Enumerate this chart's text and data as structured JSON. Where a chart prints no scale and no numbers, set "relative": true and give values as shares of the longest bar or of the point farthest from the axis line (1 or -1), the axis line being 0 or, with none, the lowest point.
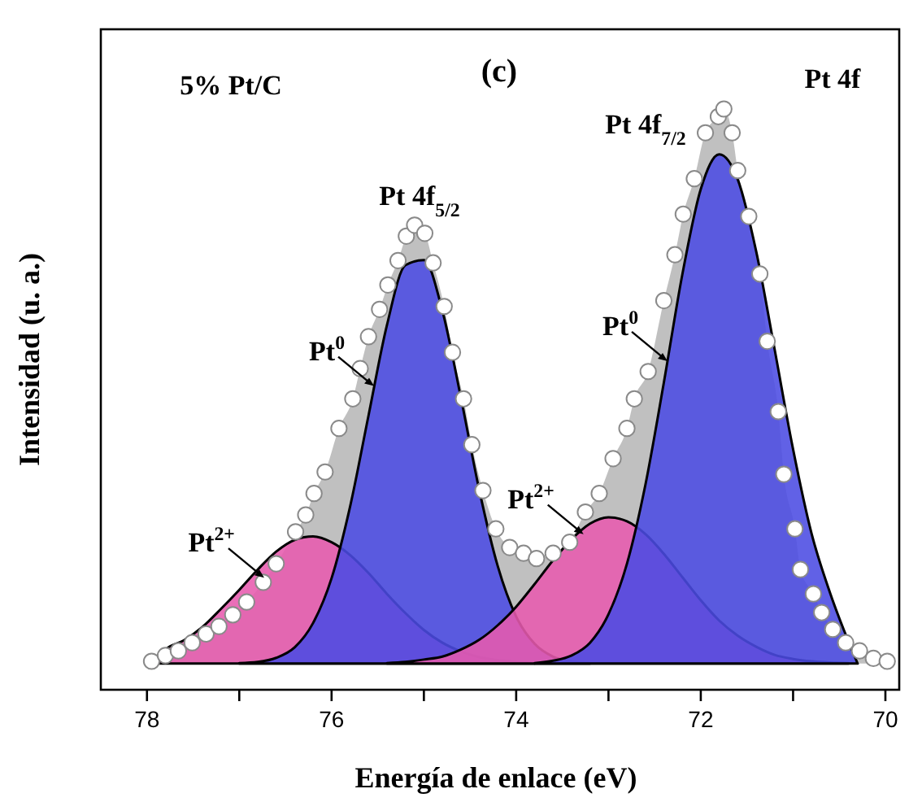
{
  "chart_data": {
    "type": "area",
    "title": "(c)",
    "xlabel": "Energía de enlace (eV)",
    "ylabel": "Intensidad (u. a.)",
    "relative": true,
    "xlim": [
      78.5,
      69.85
    ],
    "xticks": [
      78,
      {
        "value": 77,
        "label": null
      },
      76,
      {
        "value": 75,
        "label": null
      },
      74,
      {
        "value": 73,
        "label": null
      },
      72,
      {
        "value": 71,
        "label": null
      },
      70
    ],
    "grid": false,
    "annotations": [
      "5% Pt/C",
      "Pt 4f",
      "Pt 4f$_{7/2}$",
      "Pt 4f$_{5/2}$",
      {
        "text": "Pt$^{0}$",
        "x": 75.54,
        "y": 0.523
      },
      {
        "text": "Pt$^{0}$",
        "x": 72.36,
        "y": 0.566
      },
      {
        "text": "Pt$^{2+}$",
        "x": 76.73,
        "y": 0.193
      },
      {
        "text": "Pt$^{2+}$",
        "x": 73.27,
        "y": 0.268
      }
    ],
    "series": [
      {
        "color": "#c0c0c0",
        "x": [
          77.95,
          77.8,
          77.66,
          77.51,
          77.36,
          77.22,
          77.07,
          76.92,
          76.74,
          76.6,
          76.39,
          76.28,
          76.19,
          76.07,
          75.92,
          75.77,
          75.69,
          75.6,
          75.48,
          75.39,
          75.28,
          75.19,
          75.1,
          74.99,
          74.9,
          74.78,
          74.69,
          74.57,
          74.48,
          74.36,
          74.22,
          74.07,
          73.92,
          73.78,
          73.6,
          73.42,
          73.25,
          73.1,
          72.95,
          72.8,
          72.72,
          72.57,
          72.4,
          72.28,
          72.19,
          72.07,
          71.95,
          71.81,
          71.75,
          71.66,
          71.6,
          71.48,
          71.36,
          71.28,
          71.16,
          71.1,
          70.98,
          70.92,
          70.78,
          70.69,
          70.57,
          70.43,
          70.28,
          70.13,
          69.98
        ],
        "values": [
          0.049,
          0.059,
          0.067,
          0.081,
          0.096,
          0.109,
          0.129,
          0.151,
          0.185,
          0.217,
          0.272,
          0.301,
          0.338,
          0.375,
          0.45,
          0.501,
          0.553,
          0.608,
          0.655,
          0.697,
          0.739,
          0.781,
          0.8,
          0.786,
          0.735,
          0.66,
          0.581,
          0.501,
          0.422,
          0.343,
          0.277,
          0.245,
          0.235,
          0.226,
          0.235,
          0.254,
          0.306,
          0.338,
          0.398,
          0.45,
          0.501,
          0.548,
          0.67,
          0.749,
          0.819,
          0.88,
          0.959,
          0.987,
          1,
          0.959,
          0.894,
          0.815,
          0.716,
          0.6,
          0.479,
          0.371,
          0.277,
          0.207,
          0.165,
          0.133,
          0.104,
          0.081,
          0.067,
          0.054,
          0.049
        ]
      },
      {
        "color": "#e75aae",
        "line_style": "solid",
        "x": [
          77.9,
          77.8,
          77.6,
          77.4,
          77.2,
          77.0,
          76.8,
          76.6,
          76.4,
          76.2,
          76.0,
          75.8,
          75.6,
          75.4,
          75.2,
          75.0,
          74.8,
          74.6,
          74.4,
          74.2,
          74.0,
          73.8
        ],
        "values": [
          0.046,
          0.069,
          0.085,
          0.108,
          0.139,
          0.172,
          0.207,
          0.238,
          0.258,
          0.264,
          0.254,
          0.232,
          0.201,
          0.165,
          0.132,
          0.103,
          0.081,
          0.066,
          0.056,
          0.051,
          0.048,
          0.046
        ]
      },
      {
        "color": "#4b4be3",
        "line_style": "solid",
        "x": [
          77.0,
          76.8,
          76.6,
          76.4,
          76.2,
          76.0,
          75.8,
          75.6,
          75.4,
          75.2,
          75.0,
          74.8,
          74.6,
          74.4,
          74.2,
          74.0,
          73.8,
          73.6,
          73.4,
          73.2
        ],
        "values": [
          0.046,
          0.048,
          0.055,
          0.073,
          0.115,
          0.192,
          0.315,
          0.472,
          0.628,
          0.731,
          0.74,
          0.653,
          0.504,
          0.344,
          0.213,
          0.126,
          0.079,
          0.057,
          0.049,
          0.046
        ]
      },
      {
        "color": "#e75aae",
        "line_style": "solid",
        "x": [
          75.4,
          75.2,
          75.0,
          74.8,
          74.6,
          74.4,
          74.2,
          74.0,
          73.8,
          73.6,
          73.4,
          73.2,
          73.0,
          72.8,
          72.6,
          72.4,
          72.2,
          72.0,
          71.8,
          71.6,
          71.4,
          71.2,
          71.0,
          70.8,
          70.6,
          70.4
        ],
        "values": [
          0.046,
          0.048,
          0.052,
          0.057,
          0.069,
          0.086,
          0.111,
          0.143,
          0.182,
          0.223,
          0.259,
          0.286,
          0.297,
          0.29,
          0.268,
          0.234,
          0.194,
          0.154,
          0.119,
          0.093,
          0.074,
          0.06,
          0.053,
          0.049,
          0.047,
          0.046
        ]
      },
      {
        "color": "#4b4be3",
        "line_style": "solid",
        "x": [
          73.8,
          73.6,
          73.4,
          73.2,
          73.0,
          72.8,
          72.6,
          72.4,
          72.2,
          72.0,
          71.8,
          71.6,
          71.4,
          71.2,
          71.0,
          70.8,
          70.6,
          70.4,
          70.3
        ],
        "values": [
          0.046,
          0.05,
          0.059,
          0.081,
          0.13,
          0.217,
          0.353,
          0.529,
          0.715,
          0.862,
          0.922,
          0.879,
          0.755,
          0.586,
          0.414,
          0.269,
          0.167,
          0.083,
          0.045
        ]
      },
      {
        "type": "scatter",
        "color": "#ffffff",
        "marker": "circle",
        "x": [
          77.95,
          77.8,
          77.66,
          77.51,
          77.36,
          77.22,
          77.07,
          76.92,
          76.74,
          76.6,
          76.39,
          76.28,
          76.19,
          76.07,
          75.92,
          75.77,
          75.69,
          75.6,
          75.48,
          75.39,
          75.28,
          75.19,
          75.1,
          74.99,
          74.9,
          74.78,
          74.69,
          74.57,
          74.48,
          74.36,
          74.22,
          74.07,
          73.92,
          73.78,
          73.6,
          73.42,
          73.25,
          73.1,
          72.95,
          72.8,
          72.72,
          72.57,
          72.4,
          72.28,
          72.19,
          72.07,
          71.95,
          71.81,
          71.75,
          71.66,
          71.6,
          71.48,
          71.36,
          71.28,
          71.16,
          71.1,
          70.98,
          70.92,
          70.78,
          70.69,
          70.57,
          70.43,
          70.28,
          70.13,
          69.98
        ],
        "values": [
          0.049,
          0.059,
          0.067,
          0.081,
          0.096,
          0.109,
          0.129,
          0.151,
          0.185,
          0.217,
          0.272,
          0.301,
          0.338,
          0.375,
          0.45,
          0.501,
          0.553,
          0.608,
          0.655,
          0.697,
          0.739,
          0.781,
          0.8,
          0.786,
          0.735,
          0.66,
          0.581,
          0.501,
          0.422,
          0.343,
          0.277,
          0.245,
          0.235,
          0.226,
          0.235,
          0.254,
          0.306,
          0.338,
          0.398,
          0.45,
          0.501,
          0.548,
          0.67,
          0.749,
          0.819,
          0.88,
          0.959,
          0.987,
          1,
          0.959,
          0.894,
          0.815,
          0.716,
          0.6,
          0.479,
          0.371,
          0.277,
          0.207,
          0.165,
          0.133,
          0.104,
          0.081,
          0.067,
          0.054,
          0.049
        ]
      }
    ]
  }
}
